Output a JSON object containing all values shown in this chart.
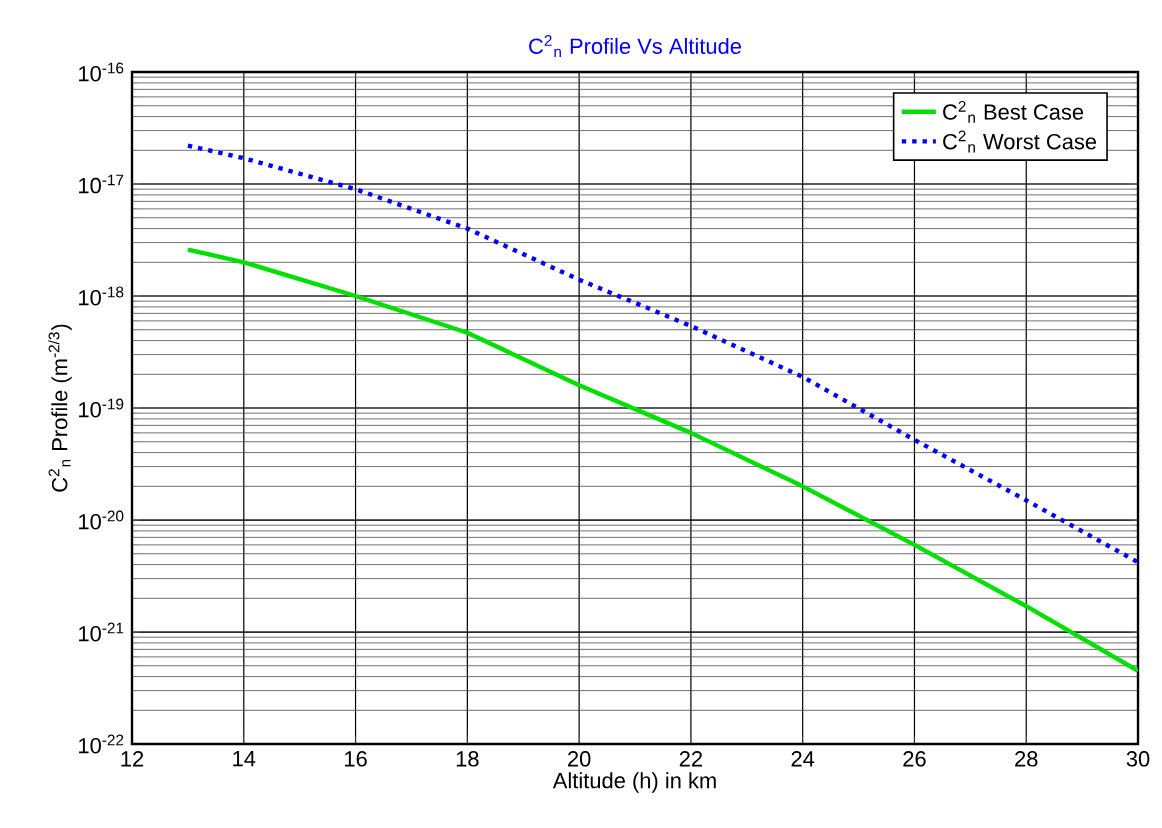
{
  "chart_data": {
    "type": "line",
    "title": "C$^{2}$$_{n}$ Profile Vs Altitude",
    "xlabel": "Altitude (h) in km",
    "ylabel": "C$^{2}$$_{n}$ Profile (m$^{-2/3}$)",
    "log": "y",
    "grid": true,
    "legend": "top right",
    "xlim": [
      12,
      30
    ],
    "xticks": [
      12,
      14,
      16,
      18,
      20,
      22,
      24,
      26,
      28,
      30
    ],
    "ylim": [
      1e-22,
      1e-16
    ],
    "yticks": [
      {
        "value": 1e-22,
        "label": "10$^{-22}$"
      },
      {
        "value": 1e-21,
        "label": "10$^{-21}$"
      },
      {
        "value": 1e-20,
        "label": "10$^{-20}$"
      },
      {
        "value": 1e-19,
        "label": "10$^{-19}$"
      },
      {
        "value": 1e-18,
        "label": "10$^{-18}$"
      },
      {
        "value": 1e-17,
        "label": "10$^{-17}$"
      },
      {
        "value": 1e-16,
        "label": "10$^{-16}$"
      }
    ],
    "x": [
      13,
      14,
      16,
      18,
      20,
      22,
      24,
      26,
      28,
      30
    ],
    "series": [
      {
        "name": "C$^{2}$$_{n}$ Best Case",
        "color": "#00e000",
        "line_style": "solid",
        "values": [
          2.6e-18,
          2e-18,
          1e-18,
          4.7e-19,
          1.6e-19,
          6e-20,
          2e-20,
          6e-21,
          1.7e-21,
          4.5e-22
        ]
      },
      {
        "name": "C$^{2}$$_{n}$ Worst Case",
        "color": "#0000ff",
        "line_style": "dotted",
        "values": [
          2.2e-17,
          1.7e-17,
          9e-18,
          4e-18,
          1.4e-18,
          5.4e-19,
          1.9e-19,
          5.2e-20,
          1.5e-20,
          4.2e-21
        ]
      }
    ]
  }
}
